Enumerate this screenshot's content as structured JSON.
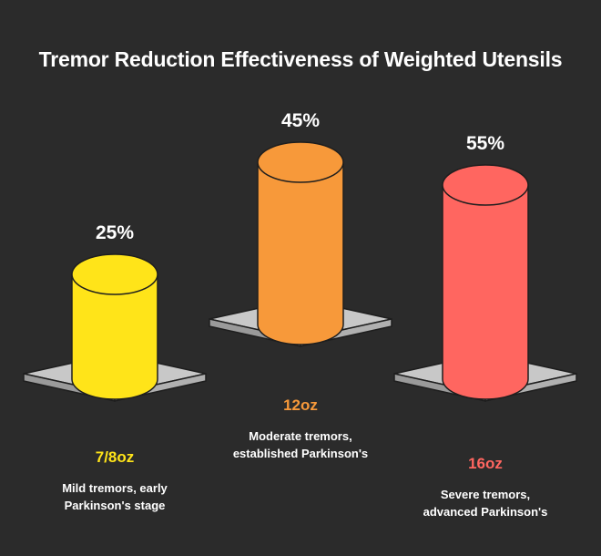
{
  "chart_data": {
    "type": "bar",
    "title": "Tremor Reduction Effectiveness of Weighted Utensils",
    "categories": [
      "7/8oz",
      "12oz",
      "16oz"
    ],
    "values": [
      25,
      45,
      55
    ],
    "value_labels": [
      "25%",
      "45%",
      "55%"
    ],
    "descriptions": [
      [
        "Mild tremors, early",
        "Parkinson's stage"
      ],
      [
        "Moderate tremors,",
        "established Parkinson's"
      ],
      [
        "Severe tremors,",
        "advanced Parkinson's"
      ]
    ],
    "colors": [
      "#ffe419",
      "#f7993a",
      "#ff6660"
    ],
    "grid": false,
    "legend": "none"
  }
}
